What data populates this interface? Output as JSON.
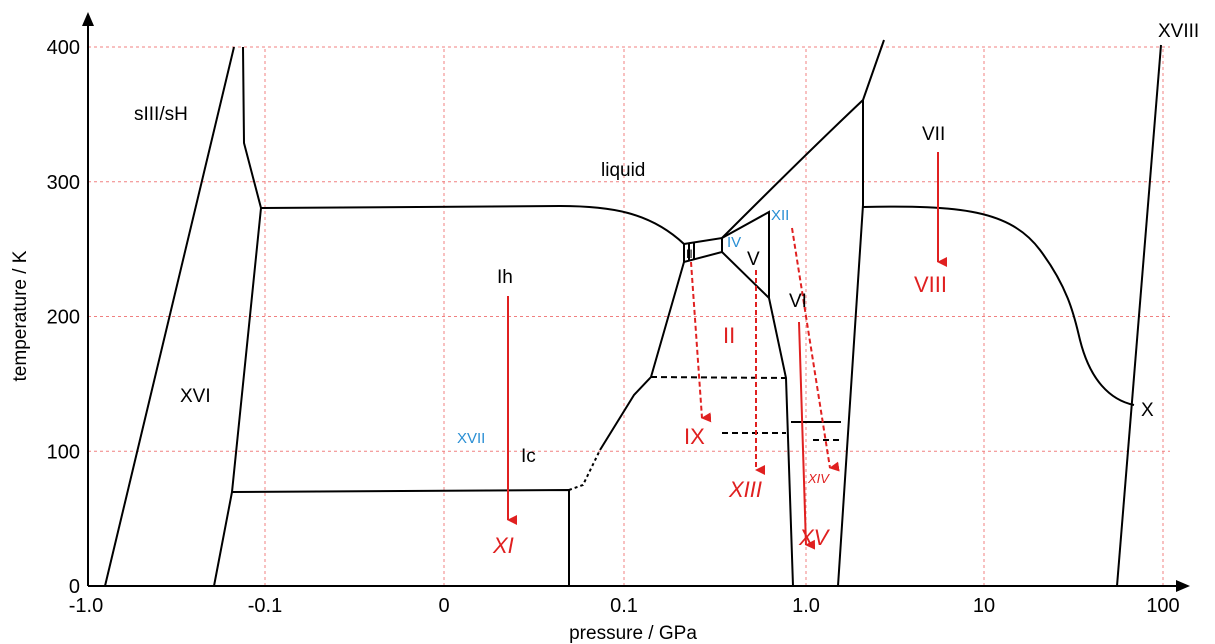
{
  "chart_data": {
    "type": "phase-diagram",
    "xlabel": "pressure / GPa",
    "ylabel": "temperature / K",
    "x_ticks": [
      "-1.0",
      "-0.1",
      "0",
      "0.1",
      "1.0",
      "10",
      "100"
    ],
    "y_ticks": [
      "0",
      "100",
      "200",
      "300",
      "400"
    ],
    "ylim": [
      0,
      400
    ],
    "grid": true,
    "phase_labels": [
      {
        "text": "sIII/sH",
        "style": "black"
      },
      {
        "text": "XVI",
        "style": "black"
      },
      {
        "text": "liquid",
        "style": "black"
      },
      {
        "text": "Ih",
        "style": "black"
      },
      {
        "text": "Ic",
        "style": "black"
      },
      {
        "text": "XVII",
        "style": "blue"
      },
      {
        "text": "III",
        "style": "black"
      },
      {
        "text": "IV",
        "style": "blue"
      },
      {
        "text": "V",
        "style": "black"
      },
      {
        "text": "XII",
        "style": "blue"
      },
      {
        "text": "VI",
        "style": "black"
      },
      {
        "text": "VII",
        "style": "black"
      },
      {
        "text": "VIII",
        "style": "red"
      },
      {
        "text": "II",
        "style": "red"
      },
      {
        "text": "IX",
        "style": "red"
      },
      {
        "text": "XIII",
        "style": "red-italic"
      },
      {
        "text": "XIV",
        "style": "red-italic-small"
      },
      {
        "text": "XV",
        "style": "red-italic"
      },
      {
        "text": "XI",
        "style": "red-italic"
      },
      {
        "text": "X",
        "style": "black"
      },
      {
        "text": "XVIII",
        "style": "black"
      }
    ],
    "colors": {
      "grid": "#f08080",
      "boundary": "#000000",
      "arrow": "#e02020",
      "label_red": "#e02020",
      "label_blue": "#2a8fd4"
    }
  }
}
